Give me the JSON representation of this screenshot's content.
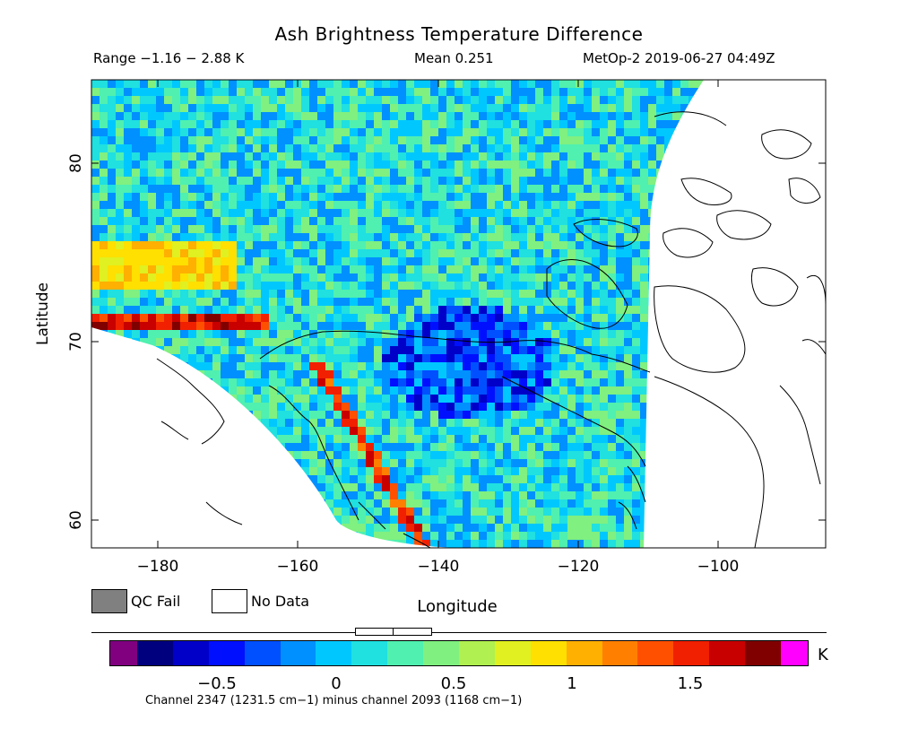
{
  "title": "Ash Brightness Temperature Difference",
  "subtitle": {
    "range": "Range −1.16 − 2.88 K",
    "mean": "Mean 0.251",
    "satellite": "MetOp-2 2019-06-27 04:49Z"
  },
  "axes": {
    "ylabel": "Latitude",
    "xlabel": "Longitude",
    "yticks": [
      "80",
      "70",
      "60"
    ],
    "xticks": [
      "−180",
      "−160",
      "−140",
      "−120",
      "−100"
    ]
  },
  "legend": {
    "qc_fail": "QC Fail",
    "no_data": "No Data",
    "qc_fail_color": "#808080",
    "no_data_color": "#ffffff"
  },
  "colorbar": {
    "unit": "K",
    "ticks": [
      "−0.5",
      "0",
      "0.5",
      "1",
      "1.5"
    ],
    "colors": [
      "#800080",
      "#00007f",
      "#0000c8",
      "#0010ff",
      "#0050ff",
      "#0090ff",
      "#00c8ff",
      "#20e0e0",
      "#50f0b0",
      "#80f080",
      "#b0f050",
      "#e0f020",
      "#ffe000",
      "#ffb000",
      "#ff8000",
      "#ff5000",
      "#f02000",
      "#c80000",
      "#800000",
      "#ff00ff"
    ],
    "footnote": "Channel 2347 (1231.5 cm−1) minus channel 2093 (1168 cm−1)"
  }
}
